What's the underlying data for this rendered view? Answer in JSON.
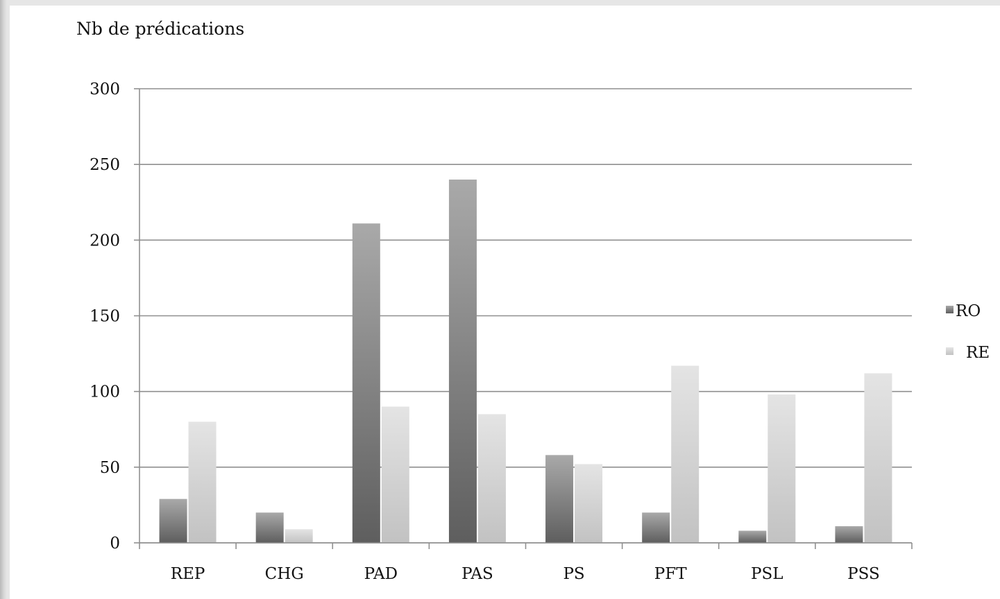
{
  "chart_data": {
    "type": "bar",
    "title": "",
    "ylabel": "Nb de prédications",
    "xlabel": "",
    "categories": [
      "REP",
      "CHG",
      "PAD",
      "PAS",
      "PS",
      "PFT",
      "PSL",
      "PSS"
    ],
    "series": [
      {
        "name": "RO",
        "values": [
          29,
          20,
          211,
          240,
          58,
          20,
          8,
          11
        ],
        "color": "#6e6e6e"
      },
      {
        "name": "RE",
        "values": [
          80,
          9,
          90,
          85,
          52,
          117,
          98,
          112
        ],
        "color": "#cfcfcf"
      }
    ],
    "ylim": [
      0,
      300
    ],
    "yticks": [
      0,
      50,
      100,
      150,
      200,
      250,
      300
    ],
    "grid": true,
    "legend": "right"
  }
}
